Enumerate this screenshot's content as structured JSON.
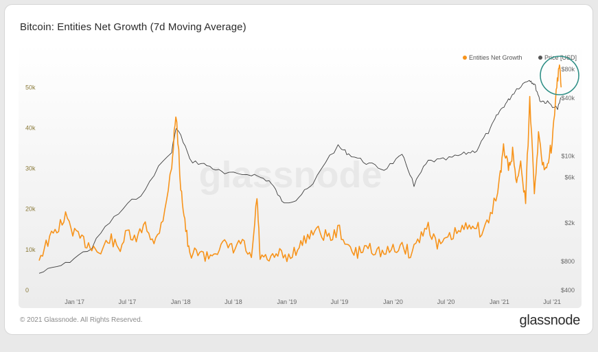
{
  "title": "Bitcoin: Entities Net Growth (7d Moving Average)",
  "footer": "© 2021 Glassnode. All Rights Reserved.",
  "brand": "glassnode",
  "watermark": "glassnode",
  "colors": {
    "orange": "#F7931A",
    "price": "#3c3c3c",
    "circle": "#2f8f86"
  },
  "chart_data": {
    "type": "line",
    "title": "Bitcoin: Entities Net Growth (7d Moving Average)",
    "legend": [
      "Entities Net Growth",
      "Price [USD]"
    ],
    "legend_position": "top-right",
    "x_ticks": [
      "Jan '17",
      "Jul '17",
      "Jan '18",
      "Jul '18",
      "Jan '19",
      "Jul '19",
      "Jan '20",
      "Jul '20",
      "Jan '21",
      "Jul '21"
    ],
    "left_axis": {
      "ticks": [
        "0",
        "10k",
        "20k",
        "30k",
        "40k",
        "50k"
      ],
      "ylim": [
        0,
        58000
      ]
    },
    "right_axis": {
      "scale": "log",
      "ticks": [
        "$400",
        "$800",
        "$2k",
        "$6k",
        "$10k",
        "$40k",
        "$80k"
      ]
    },
    "series": [
      {
        "name": "Entities Net Growth",
        "axis": "left",
        "x": [
          "2016-09-01",
          "2016-10-01",
          "2016-11-01",
          "2016-12-01",
          "2017-01-01",
          "2017-02-01",
          "2017-03-01",
          "2017-04-01",
          "2017-05-01",
          "2017-06-01",
          "2017-07-01",
          "2017-08-01",
          "2017-09-01",
          "2017-10-01",
          "2017-11-01",
          "2017-12-01",
          "2017-12-15",
          "2018-01-01",
          "2018-01-15",
          "2018-02-01",
          "2018-03-01",
          "2018-04-01",
          "2018-05-01",
          "2018-06-01",
          "2018-07-01",
          "2018-08-01",
          "2018-09-01",
          "2018-09-20",
          "2018-10-01",
          "2018-11-01",
          "2018-12-01",
          "2019-01-01",
          "2019-02-01",
          "2019-03-01",
          "2019-04-01",
          "2019-05-01",
          "2019-06-01",
          "2019-07-01",
          "2019-08-01",
          "2019-09-01",
          "2019-10-01",
          "2019-11-01",
          "2019-12-01",
          "2020-01-01",
          "2020-02-01",
          "2020-03-01",
          "2020-04-01",
          "2020-05-01",
          "2020-06-01",
          "2020-07-01",
          "2020-08-01",
          "2020-09-01",
          "2020-10-01",
          "2020-11-01",
          "2020-12-01",
          "2021-01-01",
          "2021-01-15",
          "2021-02-01",
          "2021-02-15",
          "2021-03-01",
          "2021-03-15",
          "2021-04-01",
          "2021-04-15",
          "2021-05-01",
          "2021-05-15",
          "2021-06-01",
          "2021-06-15",
          "2021-07-01",
          "2021-07-15",
          "2021-07-25",
          "2021-08-01"
        ],
        "values": [
          8000,
          12000,
          15000,
          18000,
          14000,
          12000,
          11000,
          9000,
          13000,
          10000,
          14000,
          12000,
          17000,
          11000,
          18000,
          30000,
          44000,
          26000,
          17000,
          8000,
          10000,
          8000,
          10000,
          11000,
          10000,
          12000,
          7000,
          23000,
          8000,
          7000,
          9000,
          8000,
          10000,
          12000,
          15000,
          14000,
          13000,
          15000,
          10000,
          9000,
          11000,
          10000,
          9000,
          10000,
          11000,
          9000,
          13000,
          16000,
          11000,
          12000,
          14000,
          15000,
          17000,
          14000,
          18000,
          27000,
          35000,
          30000,
          34000,
          27000,
          31000,
          22000,
          47000,
          25000,
          38000,
          30000,
          32000,
          36000,
          48000,
          56000,
          50000
        ]
      },
      {
        "name": "Price [USD]",
        "axis": "right",
        "x": [
          "2016-09-01",
          "2016-12-01",
          "2017-03-01",
          "2017-06-01",
          "2017-09-01",
          "2017-12-01",
          "2017-12-17",
          "2018-02-01",
          "2018-04-01",
          "2018-06-01",
          "2018-09-01",
          "2018-11-01",
          "2018-12-15",
          "2019-02-01",
          "2019-04-01",
          "2019-06-26",
          "2019-08-01",
          "2019-10-01",
          "2019-12-01",
          "2020-02-01",
          "2020-03-13",
          "2020-05-01",
          "2020-07-01",
          "2020-09-01",
          "2020-10-15",
          "2020-12-01",
          "2021-01-01",
          "2021-02-01",
          "2021-03-01",
          "2021-04-14",
          "2021-05-01",
          "2021-05-20",
          "2021-06-15",
          "2021-07-20",
          "2021-08-01"
        ],
        "values": [
          600,
          750,
          1100,
          2500,
          4300,
          11000,
          19500,
          9000,
          8000,
          6500,
          6500,
          5500,
          3300,
          3500,
          5000,
          12500,
          10500,
          8500,
          7200,
          10000,
          4800,
          8800,
          9200,
          10500,
          11500,
          19000,
          29000,
          38000,
          50000,
          63000,
          56000,
          38000,
          36000,
          31000,
          40000
        ]
      }
    ]
  }
}
